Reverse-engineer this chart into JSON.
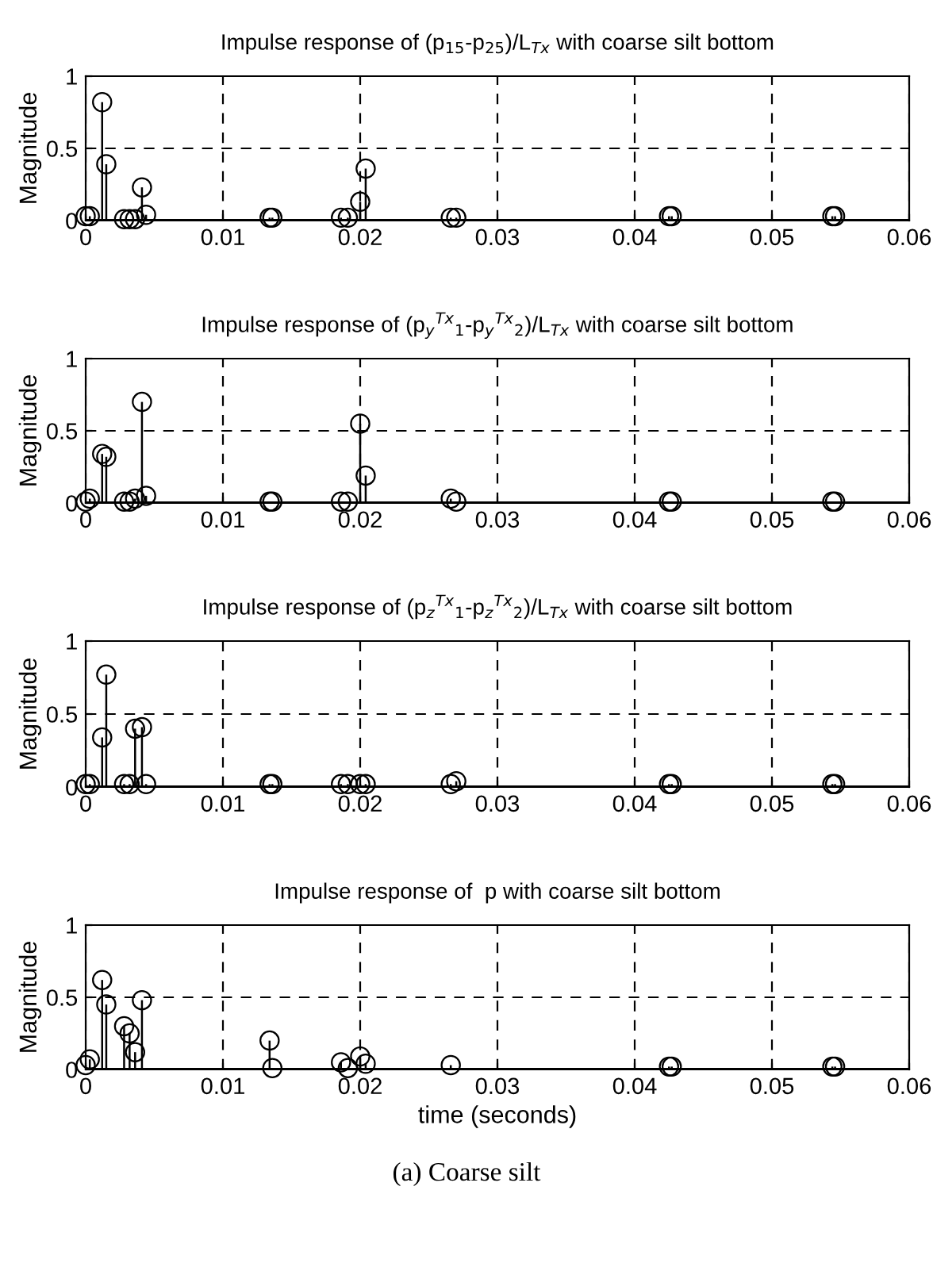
{
  "chart_data": [
    {
      "type": "lollipop",
      "title": "Impulse response of (p$_{15}$-p$_{25}$)/L$_{Tx}$ with coarse silt bottom",
      "ylabel": "Magnitude",
      "marker": "circle",
      "color": "#000000",
      "grid": true,
      "xlim": [
        0,
        0.06
      ],
      "ylim": [
        0,
        1
      ],
      "xticks": [
        0,
        0.01,
        0.02,
        0.03,
        0.04,
        0.05,
        0.06
      ],
      "yticks": [
        0,
        0.5,
        1
      ],
      "x": [
        0,
        0.0003,
        0.0012,
        0.0015,
        0.0028,
        0.0032,
        0.0036,
        0.0041,
        0.0044,
        0.0134,
        0.0136,
        0.0186,
        0.0191,
        0.02,
        0.0204,
        0.0266,
        0.027,
        0.0425,
        0.0427,
        0.0544,
        0.0546
      ],
      "values": [
        0.03,
        0.03,
        0.82,
        0.39,
        0.01,
        0.01,
        0.01,
        0.23,
        0.04,
        0.02,
        0.02,
        0.02,
        0.02,
        0.13,
        0.36,
        0.02,
        0.02,
        0.03,
        0.03,
        0.03,
        0.03
      ]
    },
    {
      "type": "lollipop",
      "title": "Impulse response of (p$_{y}$$^{Tx}$$_{1}$-p$_{y}$$^{Tx}$$_{2}$)/L$_{Tx}$ with coarse silt bottom",
      "ylabel": "Magnitude",
      "marker": "circle",
      "color": "#000000",
      "grid": true,
      "xlim": [
        0,
        0.06
      ],
      "ylim": [
        0,
        1
      ],
      "xticks": [
        0,
        0.01,
        0.02,
        0.03,
        0.04,
        0.05,
        0.06
      ],
      "yticks": [
        0,
        0.5,
        1
      ],
      "x": [
        0,
        0.0003,
        0.0012,
        0.0015,
        0.0028,
        0.0032,
        0.0036,
        0.0041,
        0.0044,
        0.0134,
        0.0136,
        0.0186,
        0.0191,
        0.02,
        0.0204,
        0.0266,
        0.027,
        0.0425,
        0.0427,
        0.0544,
        0.0546
      ],
      "values": [
        0.01,
        0.03,
        0.34,
        0.32,
        0.01,
        0.01,
        0.03,
        0.7,
        0.05,
        0.01,
        0.01,
        0.01,
        0.01,
        0.55,
        0.19,
        0.03,
        0.01,
        0.01,
        0.01,
        0.01,
        0.01
      ]
    },
    {
      "type": "lollipop",
      "title": "Impulse response of (p$_{z}$$^{Tx}$$_{1}$-p$_{z}$$^{Tx}$$_{2}$)/L$_{Tx}$ with coarse silt bottom",
      "ylabel": "Magnitude",
      "marker": "circle",
      "color": "#000000",
      "grid": true,
      "xlim": [
        0,
        0.06
      ],
      "ylim": [
        0,
        1
      ],
      "xticks": [
        0,
        0.01,
        0.02,
        0.03,
        0.04,
        0.05,
        0.06
      ],
      "yticks": [
        0,
        0.5,
        1
      ],
      "x": [
        0,
        0.0003,
        0.0012,
        0.0015,
        0.0028,
        0.0032,
        0.0036,
        0.0041,
        0.0044,
        0.0134,
        0.0136,
        0.0186,
        0.0191,
        0.02,
        0.0204,
        0.0266,
        0.027,
        0.0425,
        0.0427,
        0.0544,
        0.0546
      ],
      "values": [
        0.02,
        0.02,
        0.34,
        0.77,
        0.02,
        0.02,
        0.4,
        0.41,
        0.02,
        0.02,
        0.02,
        0.02,
        0.02,
        0.02,
        0.02,
        0.02,
        0.04,
        0.02,
        0.02,
        0.02,
        0.02
      ]
    },
    {
      "type": "lollipop",
      "title": "Impulse response of  p with coarse silt bottom",
      "xlabel": "time (seconds)",
      "ylabel": "Magnitude",
      "marker": "circle",
      "color": "#000000",
      "grid": true,
      "xlim": [
        0,
        0.06
      ],
      "ylim": [
        0,
        1
      ],
      "xticks": [
        0,
        0.01,
        0.02,
        0.03,
        0.04,
        0.05,
        0.06
      ],
      "yticks": [
        0,
        0.5,
        1
      ],
      "x": [
        0,
        0.0003,
        0.0012,
        0.0015,
        0.0028,
        0.0032,
        0.0036,
        0.0041,
        0.0134,
        0.0136,
        0.0186,
        0.0191,
        0.02,
        0.0204,
        0.0266,
        0.0425,
        0.0427,
        0.0544,
        0.0546
      ],
      "values": [
        0.03,
        0.07,
        0.62,
        0.45,
        0.3,
        0.25,
        0.12,
        0.48,
        0.2,
        0.01,
        0.05,
        0.01,
        0.09,
        0.04,
        0.03,
        0.02,
        0.02,
        0.02,
        0.02
      ],
      "annotations": [
        "(a) Coarse silt"
      ]
    }
  ]
}
